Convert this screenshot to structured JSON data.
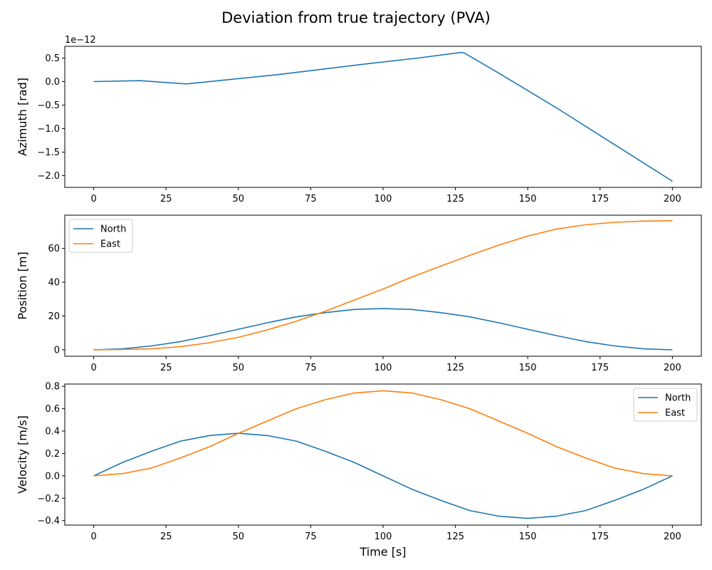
{
  "figure": {
    "title": "Deviation from true trajectory (PVA)",
    "background": "#ffffff",
    "series_colors": [
      "#1f77b4",
      "#ff7f0e"
    ]
  },
  "chart_data": [
    {
      "type": "line",
      "ylabel": "Azimuth [rad]",
      "xlabel": "",
      "offset_text": "1e−12",
      "xlim": [
        -10,
        210
      ],
      "ylim": [
        -2.25,
        0.75
      ],
      "xticks": [
        0,
        25,
        50,
        75,
        100,
        125,
        150,
        175,
        200
      ],
      "yticks": [
        0.5,
        0.0,
        -0.5,
        -1.0,
        -1.5,
        -2.0
      ],
      "ytick_labels": [
        "0.5",
        "0.0",
        "−0.5",
        "−1.0",
        "−1.5",
        "−2.0"
      ],
      "legend": null,
      "series": [
        {
          "color": "#1f77b4",
          "x": [
            0,
            16,
            32,
            48,
            64,
            80,
            96,
            112,
            127,
            128,
            140,
            160,
            180,
            200
          ],
          "y": [
            0.0,
            0.02,
            -0.05,
            0.05,
            0.15,
            0.27,
            0.39,
            0.5,
            0.62,
            0.61,
            0.18,
            -0.56,
            -1.34,
            -2.12
          ]
        }
      ]
    },
    {
      "type": "line",
      "ylabel": "Position [m]",
      "xlabel": "",
      "xlim": [
        -10,
        210
      ],
      "ylim": [
        -3.8,
        79.7
      ],
      "xticks": [
        0,
        25,
        50,
        75,
        100,
        125,
        150,
        175,
        200
      ],
      "yticks": [
        0,
        20,
        40,
        60
      ],
      "ytick_labels": [
        "0",
        "20",
        "40",
        "60"
      ],
      "legend": "upper-left",
      "series": [
        {
          "name": "North",
          "color": "#1f77b4",
          "x": [
            0,
            10,
            20,
            30,
            40,
            50,
            60,
            70,
            80,
            90,
            100,
            110,
            120,
            130,
            140,
            150,
            160,
            170,
            180,
            190,
            200
          ],
          "y": [
            0,
            0.6,
            2.3,
            4.9,
            8.4,
            12.2,
            16.0,
            19.5,
            22.0,
            23.9,
            24.4,
            23.9,
            22.0,
            19.5,
            16.0,
            12.2,
            8.4,
            4.9,
            2.3,
            0.6,
            0
          ]
        },
        {
          "name": "East",
          "color": "#ff7f0e",
          "x": [
            0,
            10,
            20,
            30,
            40,
            50,
            60,
            70,
            80,
            90,
            100,
            110,
            120,
            130,
            140,
            150,
            160,
            170,
            180,
            190,
            200
          ],
          "y": [
            0,
            0.2,
            0.6,
            1.9,
            4.2,
            7.4,
            11.8,
            16.9,
            22.8,
            29.4,
            36.0,
            43.1,
            49.6,
            55.9,
            62.0,
            67.3,
            71.5,
            74.0,
            75.5,
            76.2,
            76.4
          ]
        }
      ]
    },
    {
      "type": "line",
      "ylabel": "Velocity [m/s]",
      "xlabel": "Time [s]",
      "xlim": [
        -10,
        210
      ],
      "ylim": [
        -0.44,
        0.82
      ],
      "xticks": [
        0,
        25,
        50,
        75,
        100,
        125,
        150,
        175,
        200
      ],
      "yticks": [
        0.8,
        0.6,
        0.4,
        0.2,
        0.0,
        -0.2,
        -0.4
      ],
      "ytick_labels": [
        "0.8",
        "0.6",
        "0.4",
        "0.2",
        "0.0",
        "−0.2",
        "−0.4"
      ],
      "legend": "upper-right",
      "series": [
        {
          "name": "North",
          "color": "#1f77b4",
          "x": [
            0,
            10,
            20,
            30,
            40,
            50,
            60,
            70,
            80,
            90,
            100,
            110,
            120,
            130,
            140,
            150,
            160,
            170,
            180,
            190,
            200
          ],
          "y": [
            0,
            0.12,
            0.22,
            0.31,
            0.36,
            0.38,
            0.36,
            0.31,
            0.22,
            0.12,
            0,
            -0.12,
            -0.22,
            -0.31,
            -0.36,
            -0.38,
            -0.36,
            -0.31,
            -0.22,
            -0.12,
            0
          ]
        },
        {
          "name": "East",
          "color": "#ff7f0e",
          "x": [
            0,
            10,
            20,
            30,
            40,
            50,
            60,
            70,
            80,
            90,
            100,
            110,
            120,
            130,
            140,
            150,
            160,
            170,
            180,
            190,
            200
          ],
          "y": [
            0,
            0.02,
            0.07,
            0.16,
            0.26,
            0.38,
            0.49,
            0.6,
            0.68,
            0.74,
            0.76,
            0.74,
            0.68,
            0.6,
            0.49,
            0.38,
            0.26,
            0.16,
            0.07,
            0.02,
            0
          ]
        }
      ]
    }
  ]
}
